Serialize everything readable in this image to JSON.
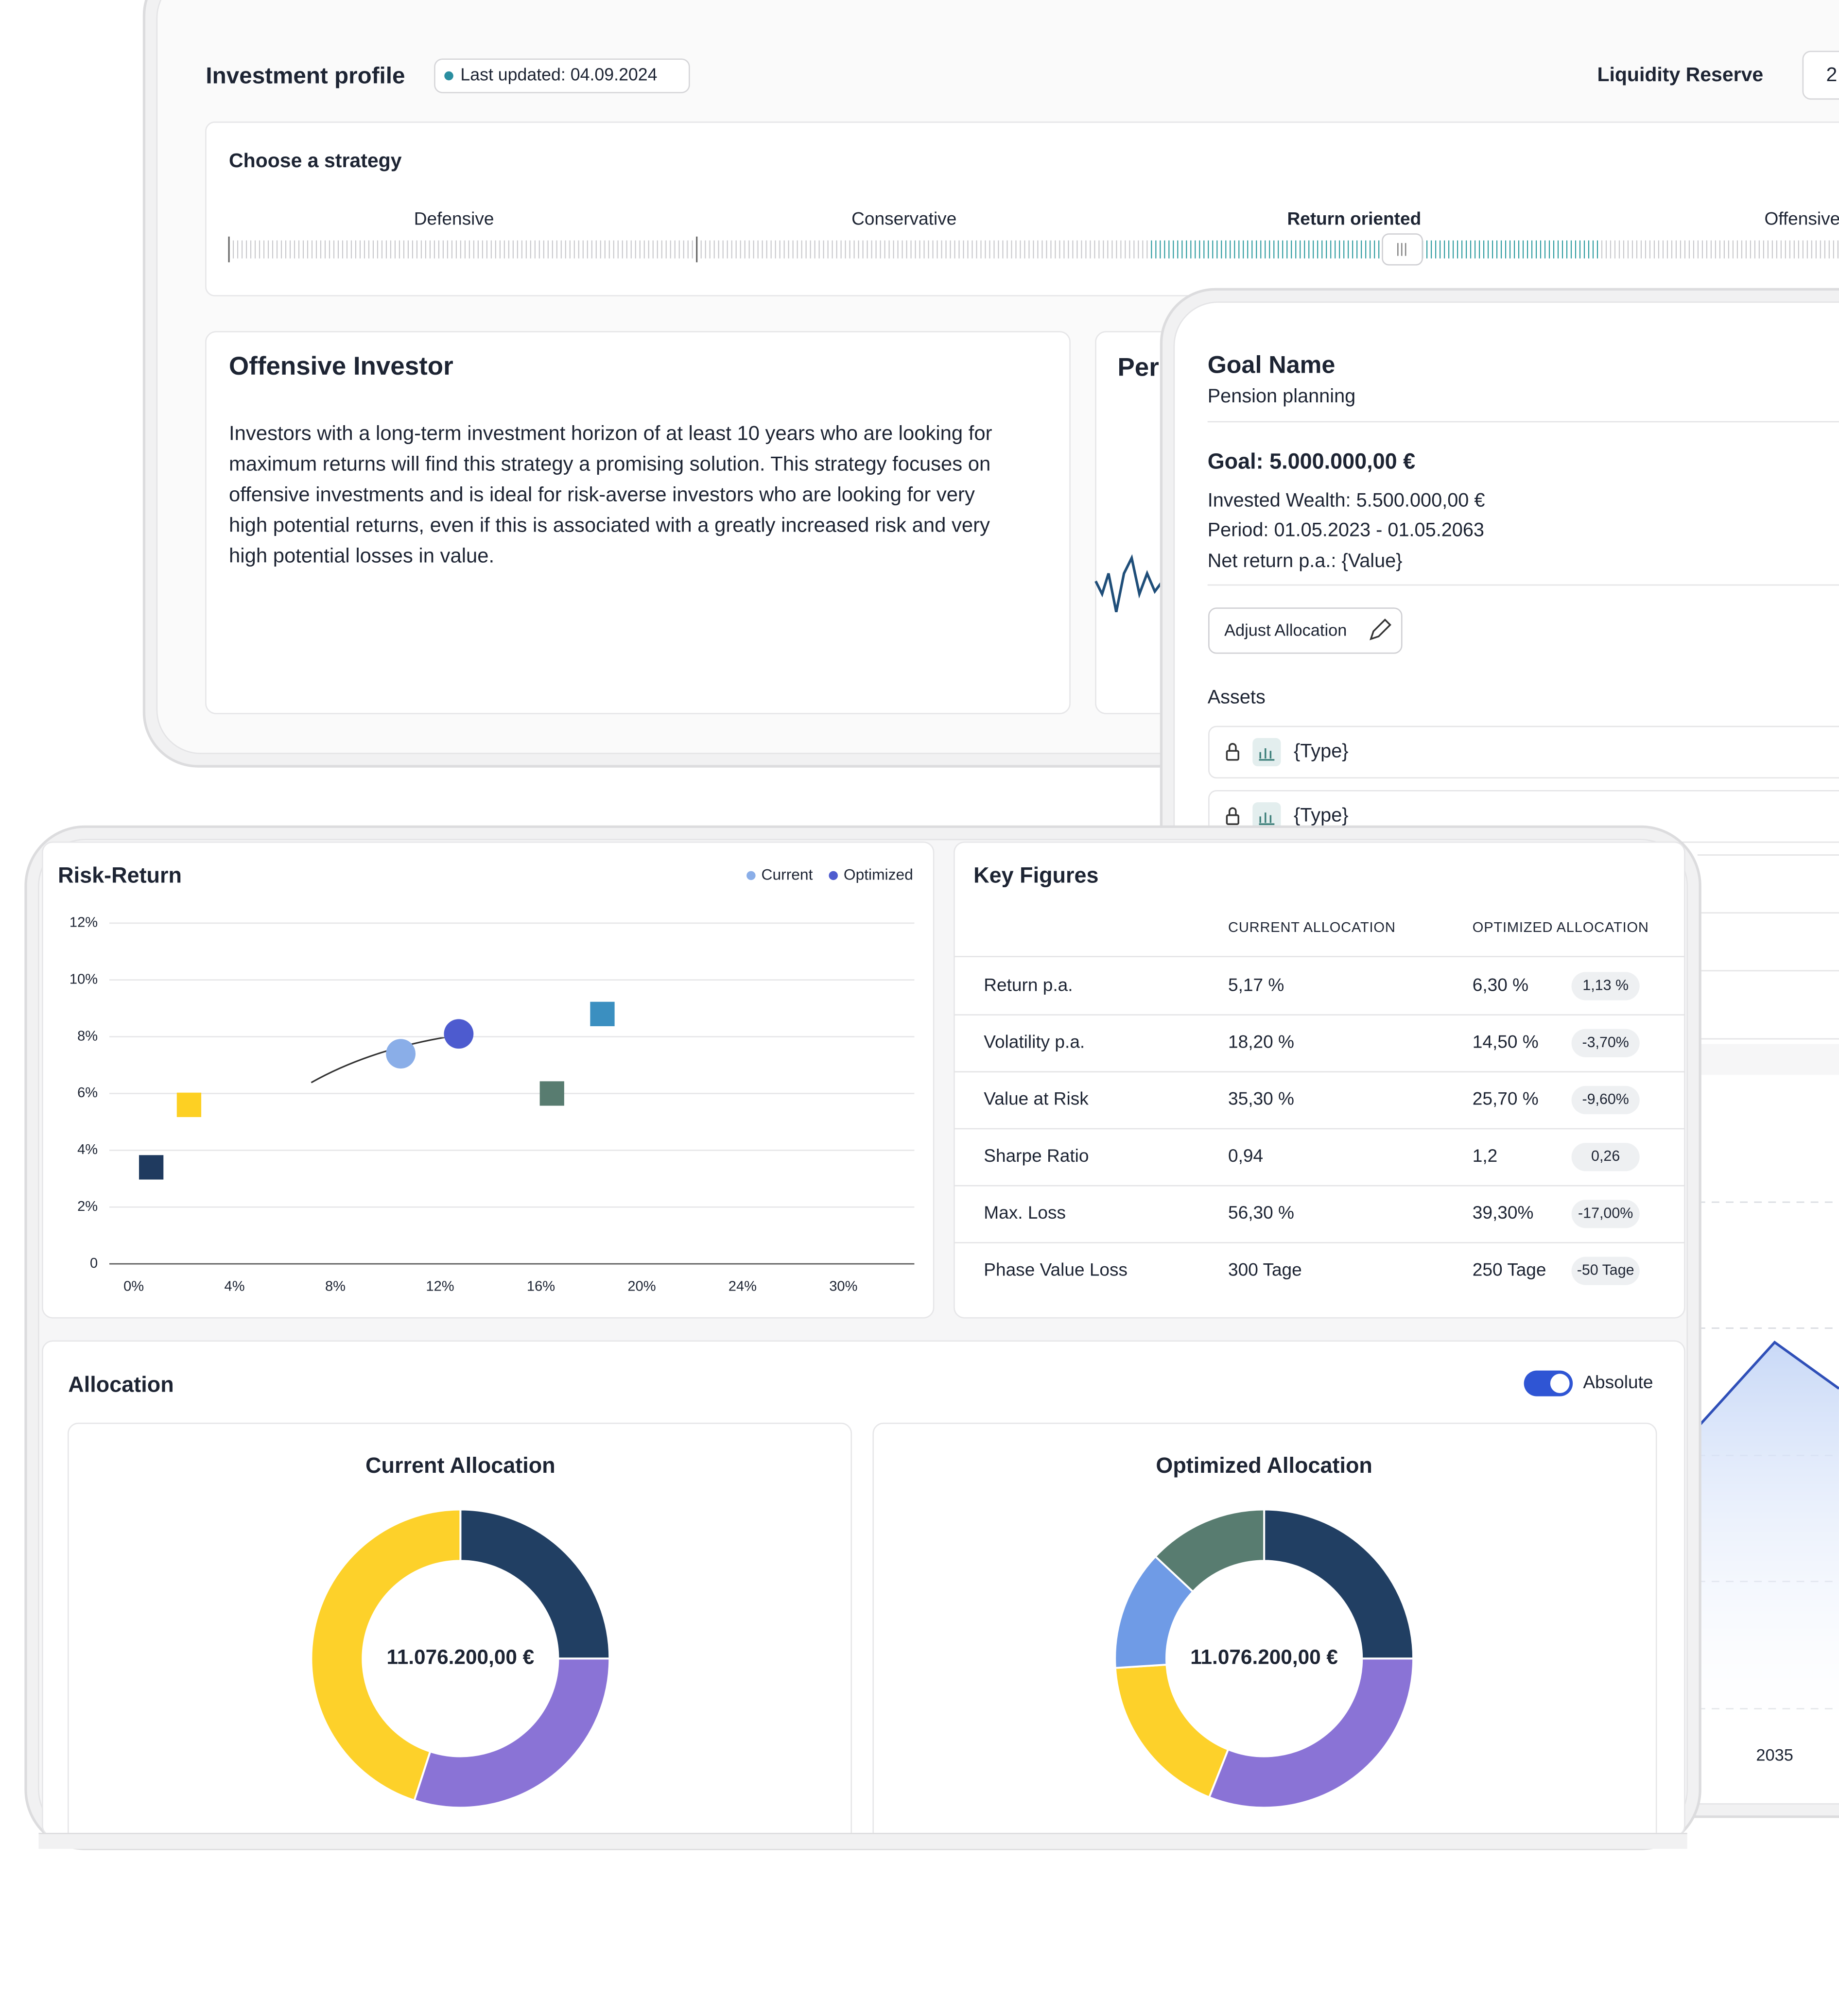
{
  "investment_profile": {
    "title": "Investment profile",
    "last_updated": "Last updated: 04.09.2024",
    "liquidity_label": "Liquidity Reserve",
    "liquidity_value": "2",
    "strategy_title": "Choose a strategy",
    "strategies": [
      "Defensive",
      "Conservative",
      "Return oriented",
      "Offensive"
    ],
    "profile_title": "Offensive Investor",
    "profile_lines": [
      "Investors with a long-term investment horizon of at least 10 years who are looking for",
      "maximum returns will find this strategy a promising solution. This strategy focuses on",
      "offensive investments and is ideal for risk-averse investors who are looking for very",
      "high potential returns, even if this is associated with a greatly increased risk and very",
      "high potential losses in value."
    ],
    "performance_title": "Per"
  },
  "goal": {
    "title": "Goal Name",
    "subtitle": "Pension planning",
    "goal": "Goal: 5.000.000,00 €",
    "invested": "Invested Wealth: 5.500.000,00 €",
    "period": "Period: 01.05.2023 - 01.05.2063",
    "net_return": "Net return p.a.: {Value}",
    "button": "Adjust Allocation",
    "assets_title": "Assets",
    "assets": [
      "{Type}",
      "{Type}"
    ],
    "chart_year": "2035"
  },
  "risk_return": {
    "type": "scatter",
    "title": "Risk-Return",
    "ylim": [
      0,
      12
    ],
    "yticks": [
      0,
      {
        "value": 2,
        "label": "2%"
      },
      {
        "value": 4,
        "label": "4%"
      },
      {
        "value": 6,
        "label": "6%"
      },
      {
        "value": 8,
        "label": "8%"
      },
      {
        "value": 10,
        "label": "10%"
      },
      {
        "value": 12,
        "label": "12%"
      }
    ],
    "xticks": [
      {
        "value": 0,
        "label": "0%"
      },
      {
        "value": 4,
        "label": "4%"
      },
      {
        "value": 8,
        "label": "8%"
      },
      {
        "value": 12,
        "label": "12%"
      },
      {
        "value": 16,
        "label": "16%"
      },
      {
        "value": 20,
        "label": "20%"
      },
      {
        "value": 24,
        "label": "24%"
      },
      {
        "value": 30,
        "label": "30%"
      }
    ],
    "grid": true,
    "series": [
      {
        "name": "Current",
        "color": "#8aaee8",
        "x": [
          11.0
        ],
        "values": [
          7.4
        ]
      },
      {
        "name": "Optimized",
        "color": "#4d5bcf",
        "x": [
          13.3
        ],
        "values": [
          8.1
        ]
      }
    ],
    "assets": {
      "x": [
        1.1,
        2.6,
        17.0,
        19.0
      ],
      "values": [
        3.4,
        5.6,
        6.0,
        8.8
      ],
      "colors": [
        "#1f3a5f",
        "#fdd023",
        "#587c70",
        "#3b8fc0"
      ]
    }
  },
  "key_figures": {
    "title": "Key Figures",
    "columns": [
      "CURRENT ALLOCATION",
      "OPTIMIZED ALLOCATION"
    ],
    "rows": [
      [
        "Return p.a.",
        "5,17 %",
        "6,30 %",
        "1,13 %"
      ],
      [
        "Volatility p.a.",
        "18,20 %",
        "14,50 %",
        "-3,70%"
      ],
      [
        "Value at Risk",
        "35,30 %",
        "25,70 %",
        "-9,60%"
      ],
      [
        "Sharpe Ratio",
        "0,94",
        "1,2",
        "0,26"
      ],
      [
        "Max. Loss",
        "56,30 %",
        "39,30%",
        "-17,00%"
      ],
      [
        "Phase Value Loss",
        "300 Tage",
        "250 Tage",
        "-50 Tage"
      ]
    ]
  },
  "allocation": {
    "title": "Allocation",
    "toggle_label": "Absolute",
    "charts": [
      {
        "type": "pie",
        "title": "Current Allocation",
        "center_label": "11.076.200,00 €",
        "values": [
          25,
          30,
          45
        ],
        "colors": [
          "#213f63",
          "#8a73d6",
          "#fdd12a"
        ]
      },
      {
        "type": "pie",
        "title": "Optimized Allocation",
        "center_label": "11.076.200,00 €",
        "values": [
          25,
          31,
          18,
          13,
          13
        ],
        "colors": [
          "#213f63",
          "#8a73d6",
          "#fdd12a",
          "#6f9be6",
          "#587c70"
        ]
      }
    ]
  }
}
